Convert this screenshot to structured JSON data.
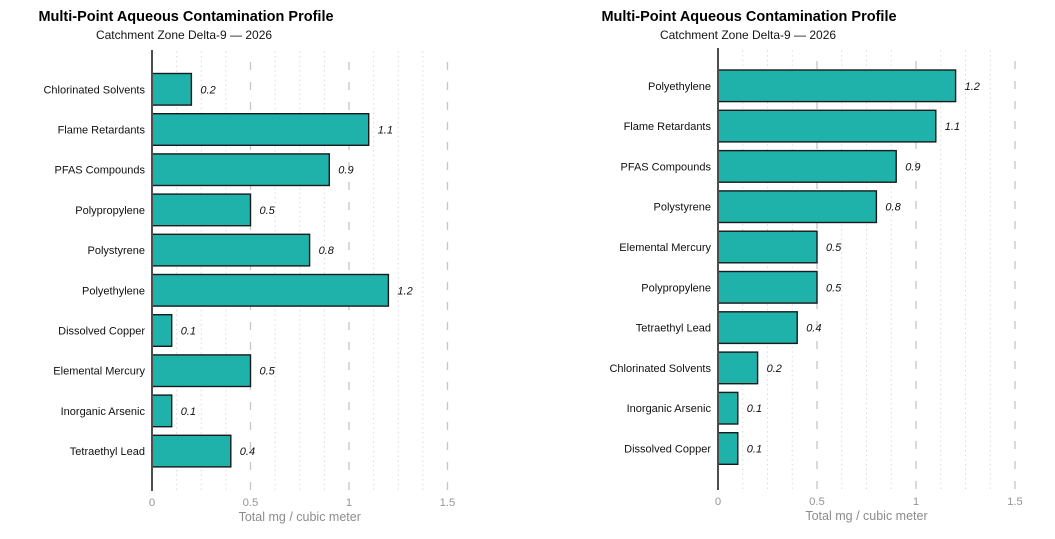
{
  "chart_data": [
    {
      "type": "bar",
      "orientation": "horizontal",
      "sort": "none",
      "title": "Multi-Point Aqueous Contamination Profile",
      "subtitle": "Catchment Zone Delta-9 — 2026",
      "xlabel": "Total mg / cubic meter",
      "categories": [
        "Chlorinated Solvents",
        "Flame Retardants",
        "PFAS Compounds",
        "Polypropylene",
        "Polystyrene",
        "Polyethylene",
        "Dissolved Copper",
        "Elemental Mercury",
        "Inorganic Arsenic",
        "Tetraethyl Lead"
      ],
      "values": [
        0.2,
        1.1,
        0.9,
        0.5,
        0.8,
        1.2,
        0.1,
        0.5,
        0.1,
        0.4
      ],
      "bar_labels": [
        "0.2",
        "1.1",
        "0.9",
        "0.5",
        "0.8",
        "1.2",
        "0.1",
        "0.5",
        "0.1",
        "0.4"
      ],
      "xlim": [
        0,
        1.55
      ],
      "xticks": [
        0,
        0.5,
        1,
        1.5
      ],
      "xtick_labels": [
        "0",
        "0.5",
        "1",
        "1.5"
      ],
      "minor_tick_step": 0.125,
      "grid": {
        "major": "dashed",
        "minor": "dotted"
      },
      "legend": "none"
    },
    {
      "type": "bar",
      "orientation": "horizontal",
      "sort": "descending",
      "title": "Multi-Point Aqueous Contamination Profile",
      "subtitle": "Catchment Zone Delta-9 — 2026",
      "xlabel": "Total mg / cubic meter",
      "categories": [
        "Polyethylene",
        "Flame Retardants",
        "PFAS Compounds",
        "Polystyrene",
        "Elemental Mercury",
        "Polypropylene",
        "Tetraethyl Lead",
        "Chlorinated Solvents",
        "Inorganic Arsenic",
        "Dissolved Copper"
      ],
      "values": [
        1.2,
        1.1,
        0.9,
        0.8,
        0.5,
        0.5,
        0.4,
        0.2,
        0.1,
        0.1
      ],
      "bar_labels": [
        "1.2",
        "1.1",
        "0.9",
        "0.8",
        "0.5",
        "0.5",
        "0.4",
        "0.2",
        "0.1",
        "0.1"
      ],
      "xlim": [
        0,
        1.55
      ],
      "xticks": [
        0,
        0.5,
        1,
        1.5
      ],
      "xtick_labels": [
        "0",
        "0.5",
        "1",
        "1.5"
      ],
      "minor_tick_step": 0.125,
      "grid": {
        "major": "dashed",
        "minor": "dotted"
      },
      "legend": "none"
    }
  ],
  "colors": {
    "bar_fill": "#1eb2aa",
    "bar_edge": "#1a1a1a",
    "axis_spine": "#4d4d4d",
    "grid_major": "#c6c6c6",
    "grid_minor": "#dbdbdb",
    "tick_label": "#969696",
    "axis_label": "#8c8c8c",
    "category_label": "#111111",
    "value_label": "#111111",
    "title": "#000000",
    "background": "#ffffff"
  }
}
